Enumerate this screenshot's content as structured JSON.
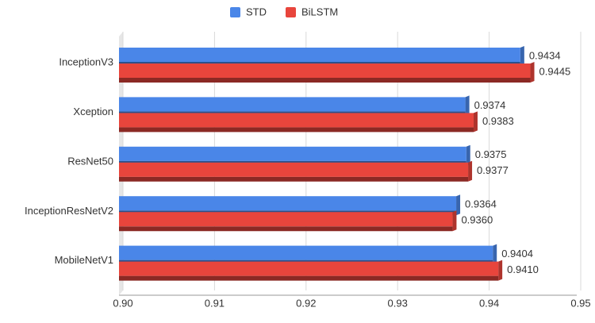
{
  "chart_data": {
    "type": "bar",
    "orientation": "horizontal",
    "categories": [
      "InceptionV3",
      "Xception",
      "ResNet50",
      "InceptionResNetV2",
      "MobileNetV1"
    ],
    "series": [
      {
        "name": "STD",
        "color": "#4a86e8",
        "values": [
          0.9434,
          0.9374,
          0.9375,
          0.9364,
          0.9404
        ],
        "value_labels": [
          "0.9434",
          "0.9374",
          "0.9375",
          "0.9364",
          "0.9404"
        ]
      },
      {
        "name": "BiLSTM",
        "color": "#e8453c",
        "values": [
          0.9445,
          0.9383,
          0.9377,
          0.936,
          0.941
        ],
        "value_labels": [
          "0.9445",
          "0.9383",
          "0.9377",
          "0.9360",
          "0.9410"
        ]
      }
    ],
    "xlim": [
      0.9,
      0.95
    ],
    "xticks": [
      {
        "value": 0.9,
        "label": "0.90"
      },
      0.91,
      0.92,
      0.93,
      0.94,
      0.95
    ],
    "grid": true,
    "legend": "top"
  }
}
